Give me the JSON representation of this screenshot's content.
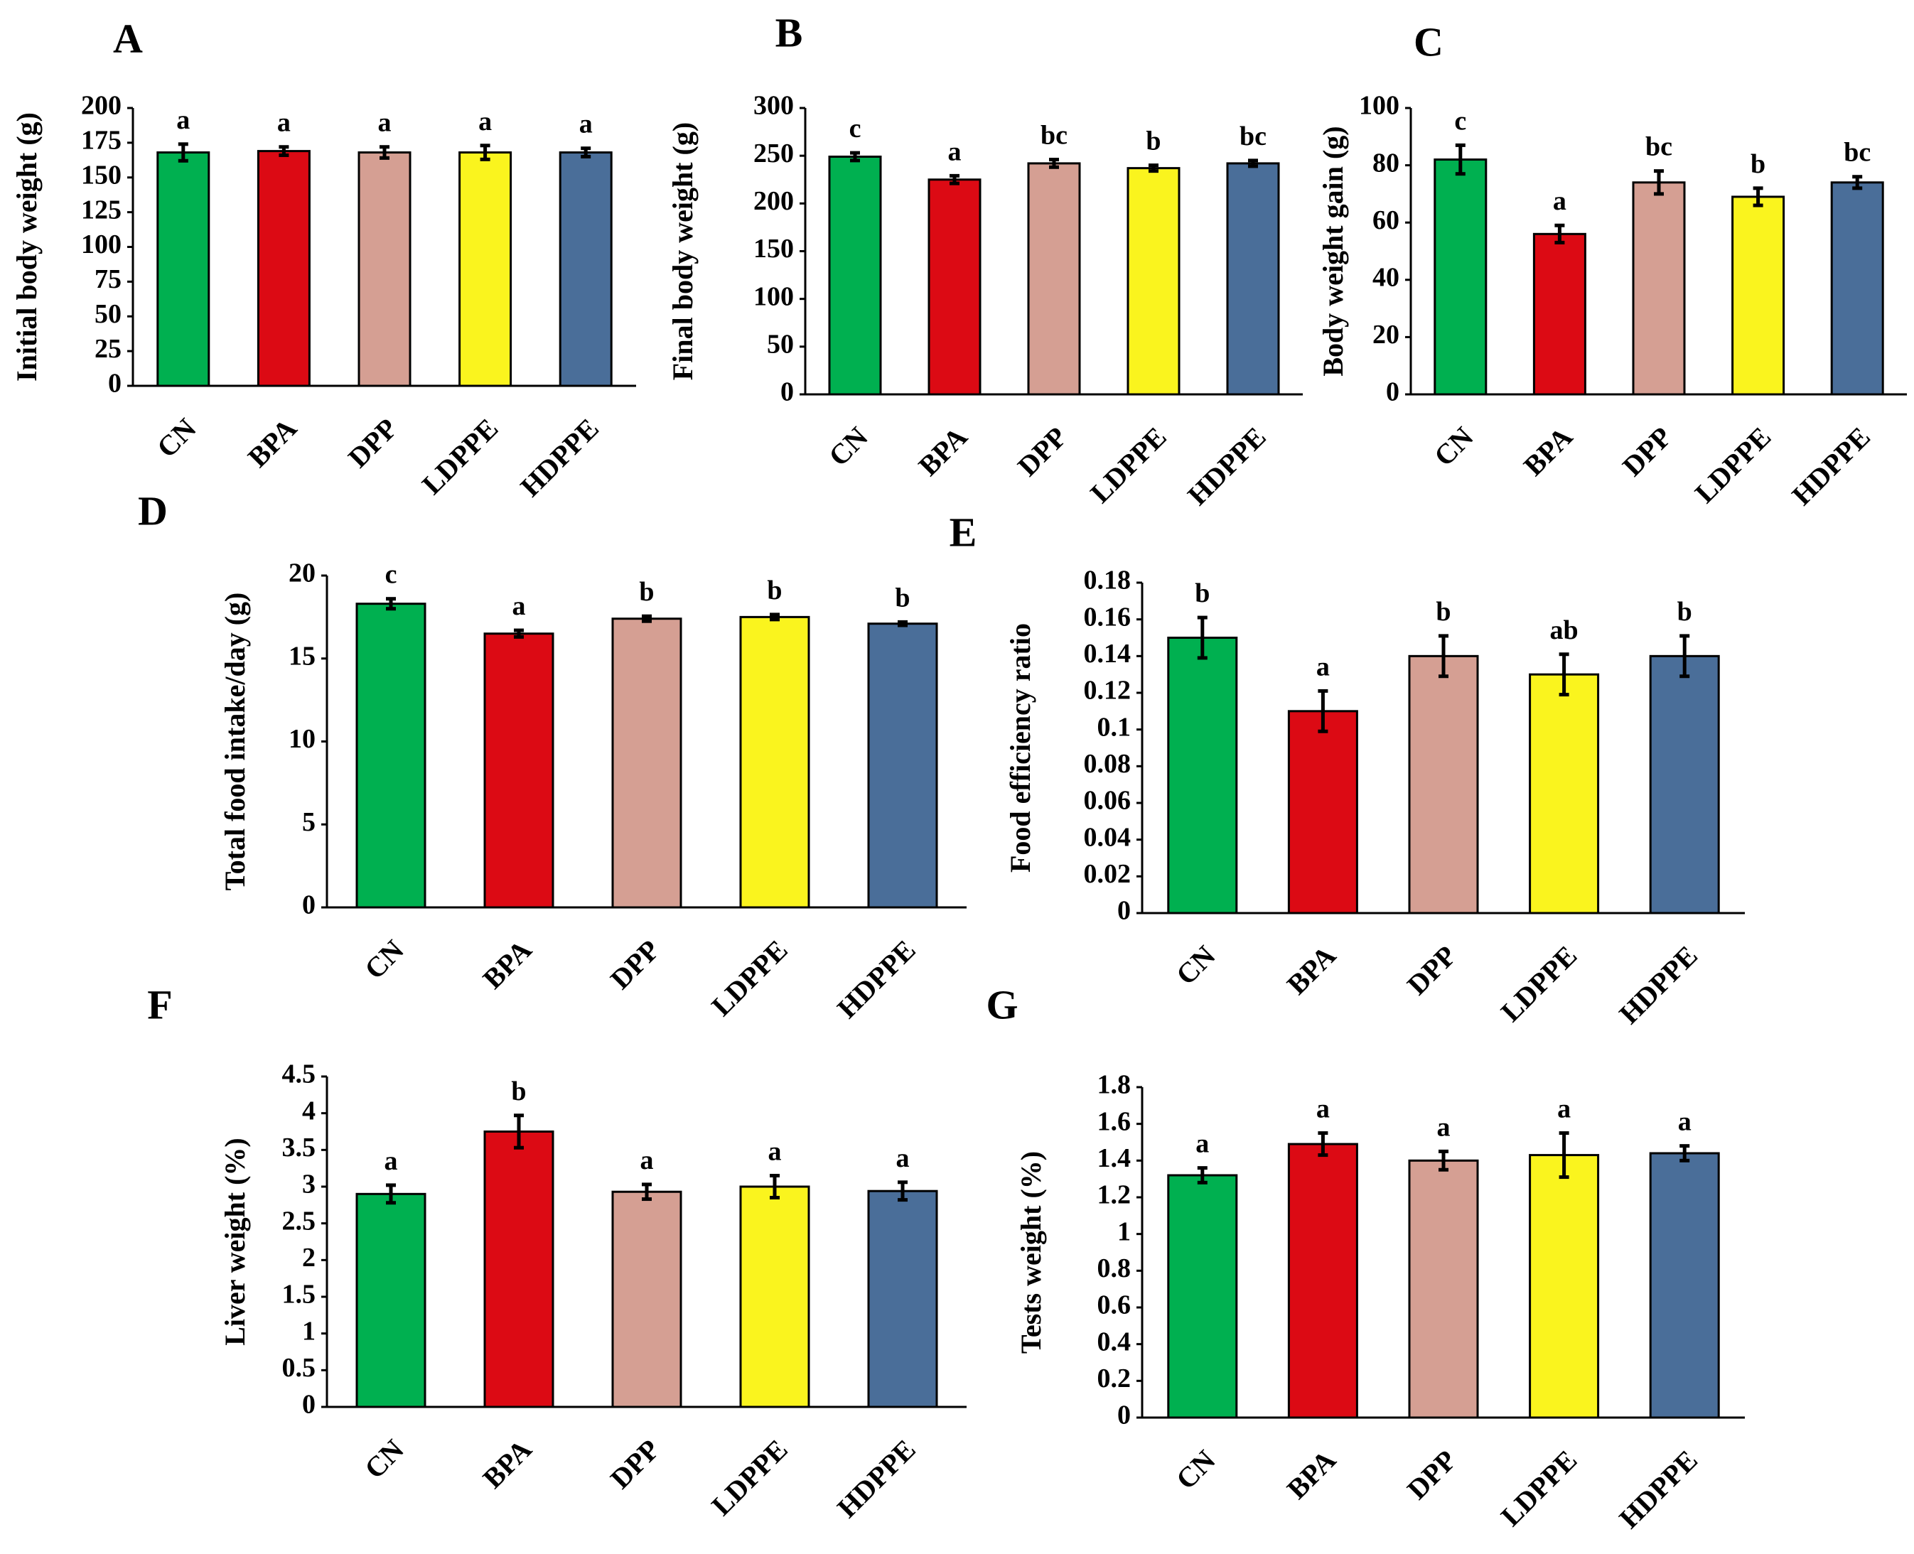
{
  "figure": {
    "categories": [
      "CN",
      "BPA",
      "DPP",
      "LDPPE",
      "HDPPE"
    ],
    "colors": [
      "#00B050",
      "#DC0A14",
      "#D59F93",
      "#FAF41E",
      "#4A6E99"
    ]
  },
  "chart_data": [
    {
      "panel": "A",
      "type": "bar",
      "ylabel": "Initial body weight (g)",
      "ylim": [
        0,
        200
      ],
      "yticks": [
        0,
        25,
        50,
        75,
        100,
        125,
        150,
        175,
        200
      ],
      "ytick_labels": [
        "0",
        "25",
        "50",
        "75",
        "100",
        "125",
        "150",
        "175",
        "200"
      ],
      "categories": [
        "CN",
        "BPA",
        "DPP",
        "LDPPE",
        "HDPPE"
      ],
      "values": [
        168,
        169,
        168,
        168,
        168
      ],
      "errors": [
        6,
        3,
        4,
        5,
        3
      ],
      "letters": [
        "a",
        "a",
        "a",
        "a",
        "a"
      ]
    },
    {
      "panel": "B",
      "type": "bar",
      "ylabel": "Final body weight (g)",
      "ylim": [
        0,
        300
      ],
      "yticks": [
        0,
        50,
        100,
        150,
        200,
        250,
        300
      ],
      "ytick_labels": [
        "0",
        "50",
        "100",
        "150",
        "200",
        "250",
        "300"
      ],
      "categories": [
        "CN",
        "BPA",
        "DPP",
        "LDPPE",
        "HDPPE"
      ],
      "values": [
        249,
        225,
        242,
        237,
        242
      ],
      "errors": [
        4,
        4,
        4,
        3,
        3
      ],
      "letters": [
        "c",
        "a",
        "bc",
        "b",
        "bc"
      ]
    },
    {
      "panel": "C",
      "type": "bar",
      "ylabel": "Body weight gain (g)",
      "ylim": [
        0,
        100
      ],
      "yticks": [
        0,
        20,
        40,
        60,
        80,
        100
      ],
      "ytick_labels": [
        "0",
        "20",
        "40",
        "60",
        "80",
        "100"
      ],
      "categories": [
        "CN",
        "BPA",
        "DPP",
        "LDPPE",
        "HDPPE"
      ],
      "values": [
        82,
        56,
        74,
        69,
        74
      ],
      "errors": [
        5,
        3,
        4,
        3,
        2
      ],
      "letters": [
        "c",
        "a",
        "bc",
        "b",
        "bc"
      ]
    },
    {
      "panel": "D",
      "type": "bar",
      "ylabel": "Total food intake/day (g)",
      "ylim": [
        0,
        20
      ],
      "yticks": [
        0,
        5,
        10,
        15,
        20
      ],
      "ytick_labels": [
        "0",
        "5",
        "10",
        "15",
        "20"
      ],
      "categories": [
        "CN",
        "BPA",
        "DPP",
        "LDPPE",
        "HDPPE"
      ],
      "values": [
        18.3,
        16.5,
        17.4,
        17.5,
        17.1
      ],
      "errors": [
        0.3,
        0.2,
        0.15,
        0.15,
        0.1
      ],
      "letters": [
        "c",
        "a",
        "b",
        "b",
        "b"
      ]
    },
    {
      "panel": "E",
      "type": "bar",
      "ylabel": "Food efficiency ratio",
      "ylim": [
        0,
        0.18
      ],
      "yticks": [
        0,
        0.02,
        0.04,
        0.06,
        0.08,
        0.1,
        0.12,
        0.14,
        0.16,
        0.18
      ],
      "ytick_labels": [
        "0",
        "0.02",
        "0.04",
        "0.06",
        "0.08",
        "0.1",
        "0.12",
        "0.14",
        "0.16",
        "0.18"
      ],
      "categories": [
        "CN",
        "BPA",
        "DPP",
        "LDPPE",
        "HDPPE"
      ],
      "values": [
        0.15,
        0.11,
        0.14,
        0.13,
        0.14
      ],
      "errors": [
        0.011,
        0.011,
        0.011,
        0.011,
        0.011
      ],
      "letters": [
        "b",
        "a",
        "b",
        "ab",
        "b"
      ]
    },
    {
      "panel": "F",
      "type": "bar",
      "ylabel": "Liver weight (%)",
      "ylim": [
        0,
        4.5
      ],
      "yticks": [
        0,
        0.5,
        1,
        1.5,
        2,
        2.5,
        3,
        3.5,
        4,
        4.5
      ],
      "ytick_labels": [
        "0",
        "0.5",
        "1",
        "1.5",
        "2",
        "2.5",
        "3",
        "3.5",
        "4",
        "4.5"
      ],
      "categories": [
        "CN",
        "BPA",
        "DPP",
        "LDPPE",
        "HDPPE"
      ],
      "values": [
        2.9,
        3.75,
        2.93,
        3.0,
        2.94
      ],
      "errors": [
        0.12,
        0.22,
        0.1,
        0.15,
        0.12
      ],
      "letters": [
        "a",
        "b",
        "a",
        "a",
        "a"
      ]
    },
    {
      "panel": "G",
      "type": "bar",
      "ylabel": "Tests weight (%)",
      "ylim": [
        0,
        1.8
      ],
      "yticks": [
        0,
        0.2,
        0.4,
        0.6,
        0.8,
        1,
        1.2,
        1.4,
        1.6,
        1.8
      ],
      "ytick_labels": [
        "0",
        "0.2",
        "0.4",
        "0.6",
        "0.8",
        "1",
        "1.2",
        "1.4",
        "1.6",
        "1.8"
      ],
      "categories": [
        "CN",
        "BPA",
        "DPP",
        "LDPPE",
        "HDPPE"
      ],
      "values": [
        1.32,
        1.49,
        1.4,
        1.43,
        1.44
      ],
      "errors": [
        0.04,
        0.06,
        0.05,
        0.12,
        0.04
      ],
      "letters": [
        "a",
        "a",
        "a",
        "a",
        "a"
      ]
    }
  ]
}
